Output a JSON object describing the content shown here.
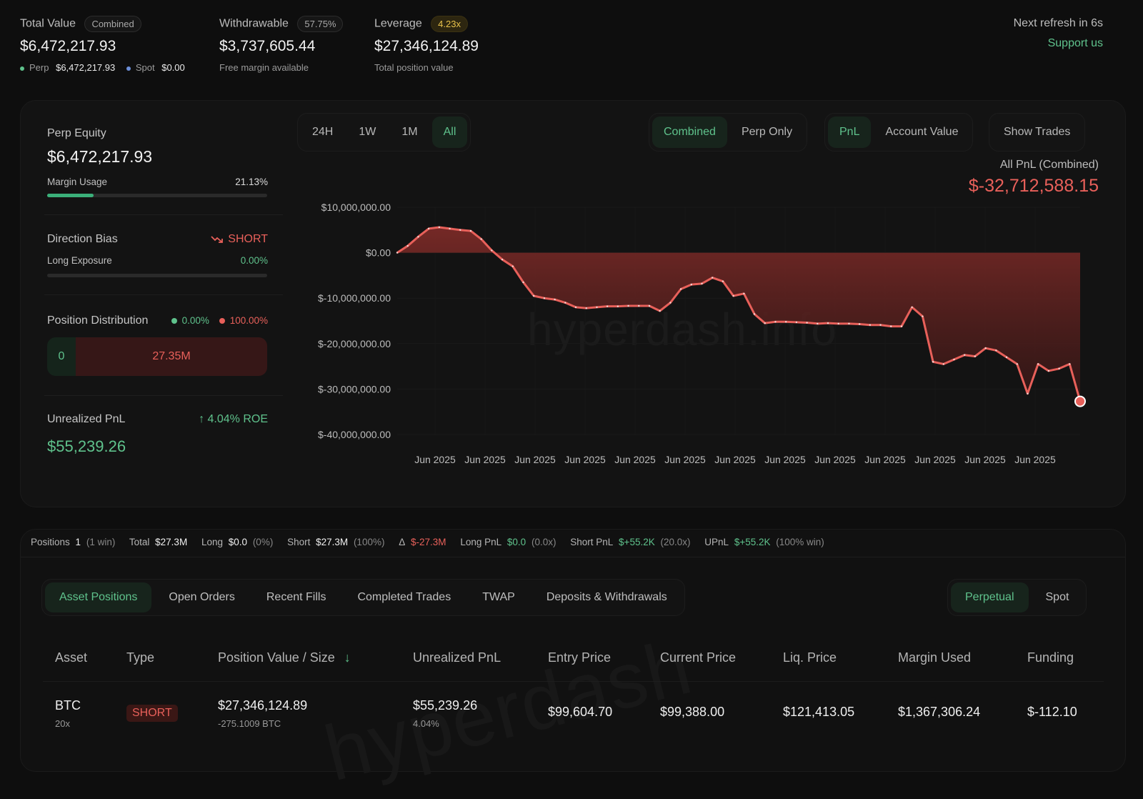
{
  "top": {
    "total_value": {
      "label": "Total Value",
      "pill": "Combined",
      "value": "$6,472,217.93",
      "perp_label": "Perp",
      "perp_value": "$6,472,217.93",
      "spot_label": "Spot",
      "spot_value": "$0.00"
    },
    "withdrawable": {
      "label": "Withdrawable",
      "pill": "57.75%",
      "value": "$3,737,605.44",
      "sub": "Free margin available"
    },
    "leverage": {
      "label": "Leverage",
      "pill": "4.23x",
      "value": "$27,346,124.89",
      "sub": "Total position value"
    },
    "refresh": "Next refresh in 6s",
    "support": "Support us"
  },
  "side": {
    "perp_equity_label": "Perp Equity",
    "perp_equity_value": "$6,472,217.93",
    "margin_usage_label": "Margin Usage",
    "margin_usage_value": "21.13%",
    "margin_usage_fraction": 0.2113,
    "direction_bias_label": "Direction Bias",
    "direction_bias_value": "SHORT",
    "long_exposure_label": "Long Exposure",
    "long_exposure_value": "0.00%",
    "long_exposure_fraction": 0.0,
    "position_distribution_label": "Position Distribution",
    "dist_long_pct": "0.00%",
    "dist_short_pct": "100.00%",
    "dist_long_amount": "0",
    "dist_short_amount": "27.35M",
    "upnl_label": "Unrealized PnL",
    "upnl_roe": "4.04% ROE",
    "upnl_value": "$55,239.26"
  },
  "controls": {
    "ranges": [
      "24H",
      "1W",
      "1M",
      "All"
    ],
    "active_range": "All",
    "mode": [
      "Combined",
      "Perp Only"
    ],
    "active_mode": "Combined",
    "metric": [
      "PnL",
      "Account Value"
    ],
    "active_metric": "PnL",
    "show_trades": "Show Trades"
  },
  "chart_header": {
    "label": "All PnL (Combined)",
    "value": "$-32,712,588.15"
  },
  "watermark": "hyperdash.info",
  "watermark2": "hyperdash",
  "chart_data": {
    "type": "area",
    "y_tick_labels": [
      "$10,000,000.00",
      "$0.00",
      "$-10,000,000.00",
      "$-20,000,000.00",
      "$-30,000,000.00",
      "$-40,000,000.00"
    ],
    "y_ticks": [
      10000000,
      0,
      -10000000,
      -20000000,
      -30000000,
      -40000000
    ],
    "ylim": [
      -40000000,
      10000000
    ],
    "x_tick_labels": [
      "Jun 2025",
      "Jun 2025",
      "Jun 2025",
      "Jun 2025",
      "Jun 2025",
      "Jun 2025",
      "Jun 2025",
      "Jun 2025",
      "Jun 2025",
      "Jun 2025",
      "Jun 2025",
      "Jun 2025",
      "Jun 2025"
    ],
    "x": [
      0,
      1,
      2,
      3,
      4,
      5,
      6,
      7,
      8,
      9,
      10,
      11,
      12,
      13,
      14,
      15,
      16,
      17,
      18,
      19,
      20,
      21,
      22,
      23,
      24,
      25,
      26,
      27,
      28,
      29,
      30,
      31,
      32,
      33,
      34,
      35,
      36,
      37,
      38,
      39,
      40,
      41,
      42,
      43,
      44,
      45,
      46,
      47,
      48,
      49,
      50,
      51,
      52,
      53,
      54,
      55,
      56,
      57,
      58,
      59,
      60,
      61,
      62,
      63,
      64,
      65
    ],
    "values": [
      0,
      1500000,
      3500000,
      5300000,
      5600000,
      5300000,
      5000000,
      4800000,
      3000000,
      500000,
      -1500000,
      -3000000,
      -6500000,
      -9500000,
      -10000000,
      -10300000,
      -11000000,
      -12000000,
      -12200000,
      -12000000,
      -11800000,
      -11800000,
      -11700000,
      -11700000,
      -11700000,
      -12800000,
      -11000000,
      -8000000,
      -7000000,
      -6800000,
      -5500000,
      -6300000,
      -9500000,
      -9000000,
      -13500000,
      -15500000,
      -15200000,
      -15200000,
      -15300000,
      -15400000,
      -15600000,
      -15500000,
      -15600000,
      -15600000,
      -15700000,
      -15900000,
      -15900000,
      -16200000,
      -16200000,
      -12000000,
      -14000000,
      -24000000,
      -24500000,
      -23500000,
      -22500000,
      -22800000,
      -21000000,
      -21500000,
      -23000000,
      -24500000,
      -31000000,
      -24500000,
      -26000000,
      -25500000,
      -24500000,
      -32700000
    ],
    "series": [
      {
        "name": "",
        "color": "#e8605a"
      }
    ],
    "grid": true
  },
  "summary": {
    "positions_label": "Positions",
    "positions_value": "1",
    "positions_sub": "(1 win)",
    "total_label": "Total",
    "total_value": "$27.3M",
    "long_label": "Long",
    "long_value": "$0.0",
    "long_sub": "(0%)",
    "short_label": "Short",
    "short_value": "$27.3M",
    "short_sub": "(100%)",
    "delta_label": "Δ",
    "delta_value": "$-27.3M",
    "long_pnl_label": "Long PnL",
    "long_pnl_value": "$0.0",
    "long_pnl_sub": "(0.0x)",
    "short_pnl_label": "Short PnL",
    "short_pnl_value": "$+55.2K",
    "short_pnl_sub": "(20.0x)",
    "upnl_label": "UPnL",
    "upnl_value": "$+55.2K",
    "upnl_sub": "(100% win)"
  },
  "tabs": [
    "Asset Positions",
    "Open Orders",
    "Recent Fills",
    "Completed Trades",
    "TWAP",
    "Deposits & Withdrawals"
  ],
  "active_tab": "Asset Positions",
  "market_tabs": [
    "Perpetual",
    "Spot"
  ],
  "active_market": "Perpetual",
  "table": {
    "headers": [
      "Asset",
      "Type",
      "Position Value / Size",
      "Unrealized PnL",
      "Entry Price",
      "Current Price",
      "Liq. Price",
      "Margin Used",
      "Funding"
    ],
    "rows": [
      {
        "asset": "BTC",
        "leverage": "20x",
        "type": "SHORT",
        "value": "$27,346,124.89",
        "size": "-275.1009 BTC",
        "upnl": "$55,239.26",
        "upnl_pct": "4.04%",
        "entry": "$99,604.70",
        "current": "$99,388.00",
        "liq": "$121,413.05",
        "margin": "$1,367,306.24",
        "funding": "$-112.10"
      }
    ]
  }
}
